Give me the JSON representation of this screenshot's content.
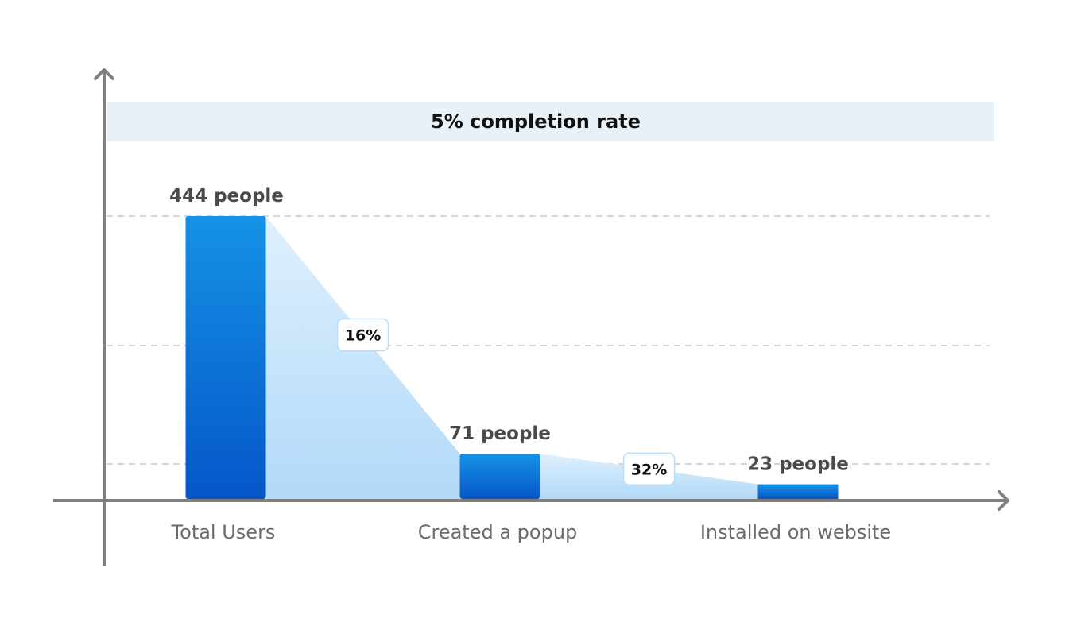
{
  "banner": {
    "text": "5% completion rate"
  },
  "chart_data": {
    "type": "bar",
    "categories": [
      "Total Users",
      "Created a popup",
      "Installed on website"
    ],
    "values": [
      444,
      71,
      23
    ],
    "value_labels": [
      "444 people",
      "71 people",
      "23 people"
    ],
    "conversion_labels": [
      "16%",
      "32%"
    ],
    "ylim": [
      0,
      444
    ],
    "grid": true,
    "colors": {
      "bar_top": "#1592e6",
      "bar_bottom": "#0656c8",
      "funnel": "#cfe6fb",
      "banner_bg": "#e8f0f8",
      "axis": "#808080",
      "grid": "#c8c8c8"
    }
  }
}
